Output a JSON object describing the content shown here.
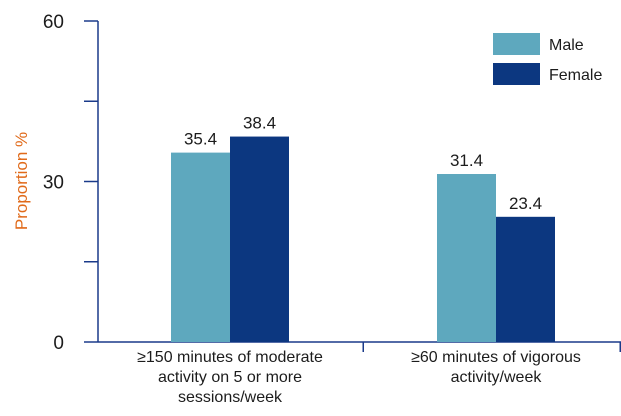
{
  "chart_data": {
    "type": "bar",
    "categories": [
      "≥150 minutes of moderate activity on 5 or more sessions/week",
      "≥60 minutes of vigorous activity/week"
    ],
    "category_lines": [
      [
        "≥150 minutes of moderate",
        "activity on 5 or more",
        "sessions/week"
      ],
      [
        "≥60 minutes of vigorous",
        "activity/week"
      ]
    ],
    "series": [
      {
        "name": "Male",
        "values": [
          35.4,
          31.4
        ],
        "color": "#5ea8be"
      },
      {
        "name": "Female",
        "values": [
          38.4,
          23.4
        ],
        "color": "#0c3780"
      }
    ],
    "ylabel": "Proportion %",
    "ylim": [
      0,
      60
    ],
    "yticks": [
      "0",
      "30",
      "60"
    ],
    "grid": false,
    "legend_position": "top-right",
    "axis_color": "#1a3a8a",
    "ylabel_color": "#e06a1a"
  }
}
